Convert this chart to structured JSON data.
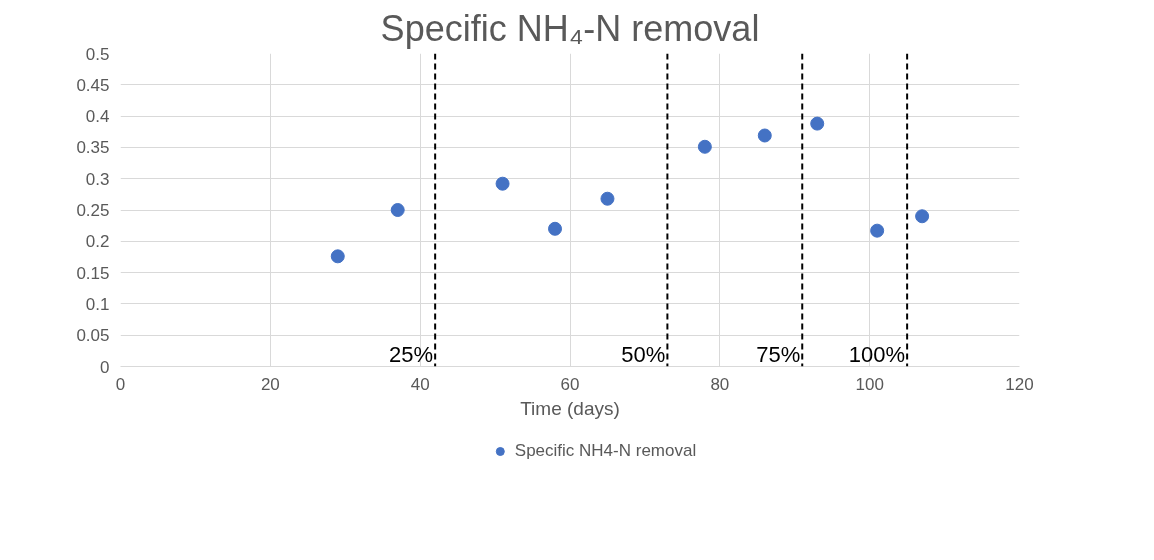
{
  "chart_data": {
    "type": "scatter",
    "title": "Specific NH₄-N removal",
    "xlabel": "Time (days)",
    "x": [
      29,
      37,
      51,
      58,
      65,
      78,
      86,
      93,
      101,
      107
    ],
    "series": [
      {
        "name": "Specific NH4-N removal",
        "color": "#4472c4",
        "values": [
          0.176,
          0.25,
          0.292,
          0.22,
          0.268,
          0.351,
          0.369,
          0.388,
          0.217,
          0.24
        ]
      }
    ],
    "xlim": [
      0,
      120
    ],
    "xticks": [
      0,
      20,
      40,
      60,
      80,
      100,
      120
    ],
    "ylim": [
      0,
      0.5
    ],
    "yticks": [
      {
        "value": 0,
        "label": "0"
      },
      0.05,
      0.1,
      0.15,
      0.2,
      0.25,
      0.3,
      0.35,
      0.4,
      0.45,
      0.5
    ],
    "ref_lines": [
      {
        "axis": "x",
        "value": 42,
        "line_style": "dashed",
        "color": "#000000"
      },
      {
        "axis": "x",
        "value": 73,
        "line_style": "dashed",
        "color": "#000000"
      },
      {
        "axis": "x",
        "value": 91,
        "line_style": "dashed",
        "color": "#000000"
      },
      {
        "axis": "x",
        "value": 105,
        "line_style": "dashed",
        "color": "#000000"
      }
    ],
    "annotations": [
      {
        "text": "25%",
        "x": 42,
        "y": 0
      },
      {
        "text": "50%",
        "x": 73,
        "y": 0
      },
      {
        "text": "75%",
        "x": 91,
        "y": 0
      },
      {
        "text": "100%",
        "x": 105,
        "y": 0
      }
    ],
    "grid": true,
    "legend": "bottom",
    "marker": "circle"
  }
}
